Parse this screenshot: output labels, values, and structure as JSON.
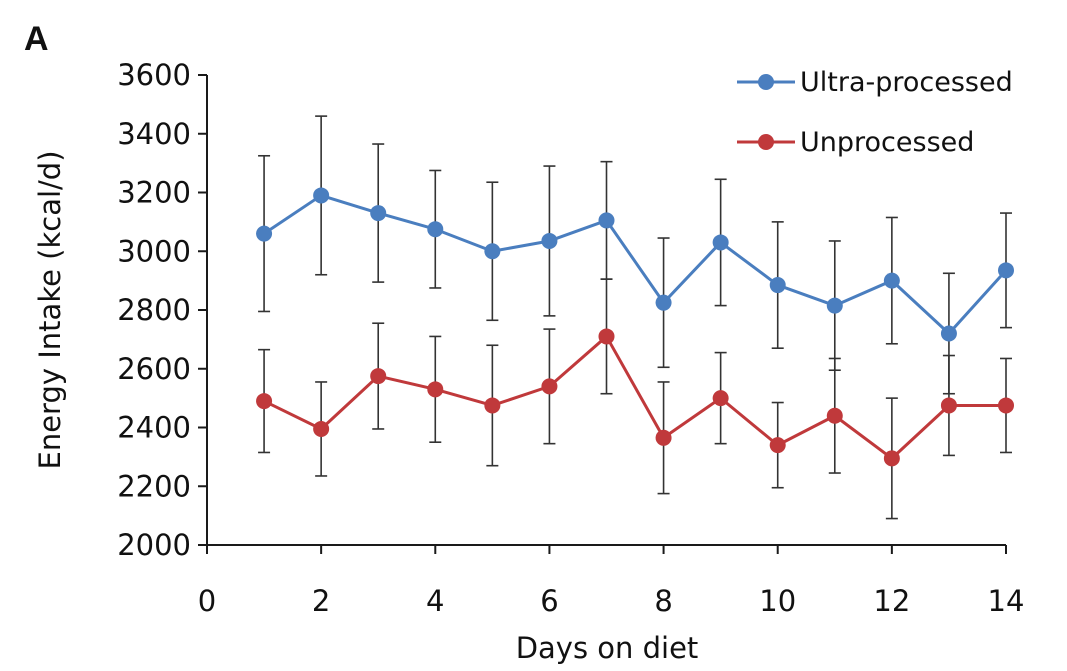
{
  "panel_label": "A",
  "chart_data": {
    "type": "line",
    "title": "",
    "xlabel": "Days on diet",
    "ylabel": "Energy Intake (kcal/d)",
    "xlim": [
      0,
      14
    ],
    "ylim": [
      2000,
      3600
    ],
    "x_ticks": [
      0,
      2,
      4,
      6,
      8,
      10,
      12,
      14
    ],
    "y_ticks": [
      2000,
      2200,
      2400,
      2600,
      2800,
      3000,
      3200,
      3400,
      3600
    ],
    "grid": false,
    "legend_position": "top-right",
    "x": [
      1,
      2,
      3,
      4,
      5,
      6,
      7,
      8,
      9,
      10,
      11,
      12,
      13,
      14
    ],
    "series": [
      {
        "name": "Ultra-processed",
        "color": "#4a7ebf",
        "values": [
          3060,
          3190,
          3130,
          3075,
          3000,
          3035,
          3105,
          2825,
          3030,
          2885,
          2815,
          2900,
          2720,
          2935
        ],
        "error": [
          265,
          270,
          235,
          200,
          235,
          255,
          200,
          220,
          215,
          215,
          220,
          215,
          205,
          195
        ]
      },
      {
        "name": "Unprocessed",
        "color": "#c0393b",
        "values": [
          2490,
          2395,
          2575,
          2530,
          2475,
          2540,
          2710,
          2365,
          2500,
          2340,
          2440,
          2295,
          2475,
          2475
        ],
        "error": [
          175,
          160,
          180,
          180,
          205,
          195,
          195,
          190,
          155,
          145,
          195,
          205,
          170,
          160
        ]
      }
    ]
  }
}
